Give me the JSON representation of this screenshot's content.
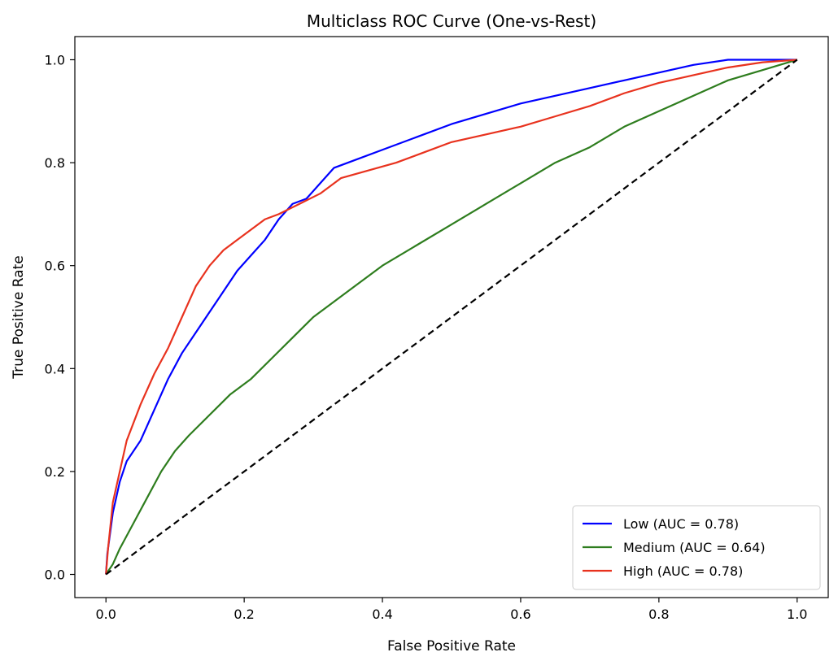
{
  "chart_data": {
    "type": "line",
    "title": "Multiclass ROC Curve (One-vs-Rest)",
    "xlabel": "False Positive Rate",
    "ylabel": "True Positive Rate",
    "xlim": [
      -0.045,
      1.045
    ],
    "ylim": [
      -0.045,
      1.045
    ],
    "xticks": [
      "0.0",
      "0.2",
      "0.4",
      "0.6",
      "0.8",
      "1.0"
    ],
    "yticks": [
      "0.0",
      "0.2",
      "0.4",
      "0.6",
      "0.8",
      "1.0"
    ],
    "grid": false,
    "legend_position": "lower-right",
    "series": [
      {
        "name": "Low (AUC = 0.78)",
        "color": "#0000ff",
        "x": [
          0,
          0.002,
          0.01,
          0.02,
          0.03,
          0.05,
          0.07,
          0.09,
          0.11,
          0.13,
          0.15,
          0.17,
          0.19,
          0.21,
          0.23,
          0.25,
          0.27,
          0.29,
          0.31,
          0.33,
          0.36,
          0.4,
          0.45,
          0.5,
          0.55,
          0.6,
          0.65,
          0.7,
          0.75,
          0.8,
          0.85,
          0.9,
          1.0
        ],
        "y": [
          0,
          0.04,
          0.12,
          0.18,
          0.22,
          0.26,
          0.32,
          0.38,
          0.43,
          0.47,
          0.51,
          0.55,
          0.59,
          0.62,
          0.65,
          0.69,
          0.72,
          0.73,
          0.76,
          0.79,
          0.805,
          0.825,
          0.85,
          0.875,
          0.895,
          0.915,
          0.93,
          0.945,
          0.96,
          0.975,
          0.99,
          1.0,
          1.0
        ]
      },
      {
        "name": "Medium (AUC = 0.64)",
        "color": "#2e7d1e",
        "x": [
          0,
          0.01,
          0.02,
          0.04,
          0.06,
          0.08,
          0.1,
          0.12,
          0.15,
          0.18,
          0.21,
          0.24,
          0.27,
          0.3,
          0.33,
          0.36,
          0.4,
          0.45,
          0.5,
          0.55,
          0.6,
          0.65,
          0.7,
          0.75,
          0.8,
          0.85,
          0.9,
          0.95,
          1.0
        ],
        "y": [
          0,
          0.02,
          0.05,
          0.1,
          0.15,
          0.2,
          0.24,
          0.27,
          0.31,
          0.35,
          0.38,
          0.42,
          0.46,
          0.5,
          0.53,
          0.56,
          0.6,
          0.64,
          0.68,
          0.72,
          0.76,
          0.8,
          0.83,
          0.87,
          0.9,
          0.93,
          0.96,
          0.98,
          1.0
        ]
      },
      {
        "name": "High (AUC = 0.78)",
        "color": "#e8321e",
        "x": [
          0,
          0.003,
          0.01,
          0.02,
          0.03,
          0.05,
          0.07,
          0.09,
          0.11,
          0.13,
          0.15,
          0.17,
          0.19,
          0.21,
          0.23,
          0.25,
          0.28,
          0.31,
          0.34,
          0.38,
          0.42,
          0.46,
          0.5,
          0.55,
          0.6,
          0.65,
          0.7,
          0.75,
          0.8,
          0.85,
          0.9,
          0.95,
          1.0
        ],
        "y": [
          0,
          0.05,
          0.14,
          0.2,
          0.26,
          0.33,
          0.39,
          0.44,
          0.5,
          0.56,
          0.6,
          0.63,
          0.65,
          0.67,
          0.69,
          0.7,
          0.72,
          0.74,
          0.77,
          0.785,
          0.8,
          0.82,
          0.84,
          0.855,
          0.87,
          0.89,
          0.91,
          0.935,
          0.955,
          0.97,
          0.985,
          0.995,
          1.0
        ]
      },
      {
        "name": "",
        "color": "#000000",
        "dashed": true,
        "x": [
          0,
          1
        ],
        "y": [
          0,
          1
        ]
      }
    ]
  }
}
